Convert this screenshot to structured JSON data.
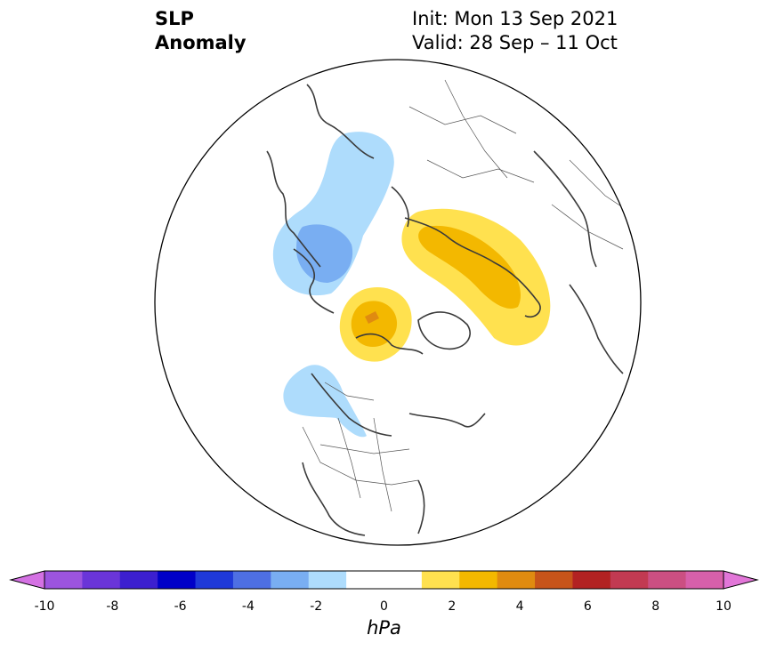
{
  "title": {
    "left_line1": "SLP",
    "left_line2": "Anomaly",
    "init": "Init: Mon 13 Sep 2021",
    "valid": "Valid: 28 Sep – 11 Oct"
  },
  "colorbar": {
    "ticks": [
      "-10",
      "-8",
      "-6",
      "-4",
      "-2",
      "0",
      "2",
      "4",
      "6",
      "8",
      "10"
    ],
    "units": "hPa",
    "colors": [
      "#d471e3",
      "#9c54de",
      "#6a35d8",
      "#3c1fcf",
      "#0000c8",
      "#1f39d8",
      "#4e6fe3",
      "#79aef2",
      "#aedcfc",
      "#ffffff",
      "#ffffff",
      "#ffe14f",
      "#f3b800",
      "#e08b10",
      "#c7541a",
      "#b22222",
      "#c23a52",
      "#cb4f82",
      "#d760aa",
      "#e276d8"
    ]
  },
  "map": {
    "anomaly_regions": [
      {
        "name": "negative-anomaly-north-atlantic-europe",
        "level": -2
      },
      {
        "name": "negative-anomaly-central-europe",
        "level": -3
      },
      {
        "name": "positive-anomaly-siberia",
        "level": 2
      },
      {
        "name": "positive-anomaly-central-siberia",
        "level": 3
      },
      {
        "name": "positive-anomaly-canadian-arctic",
        "level": 2
      },
      {
        "name": "positive-anomaly-canadian-arctic-core",
        "level": 3
      },
      {
        "name": "positive-anomaly-canadian-arctic-max",
        "level": 4
      },
      {
        "name": "negative-anomaly-north-pacific",
        "level": -2
      }
    ]
  }
}
